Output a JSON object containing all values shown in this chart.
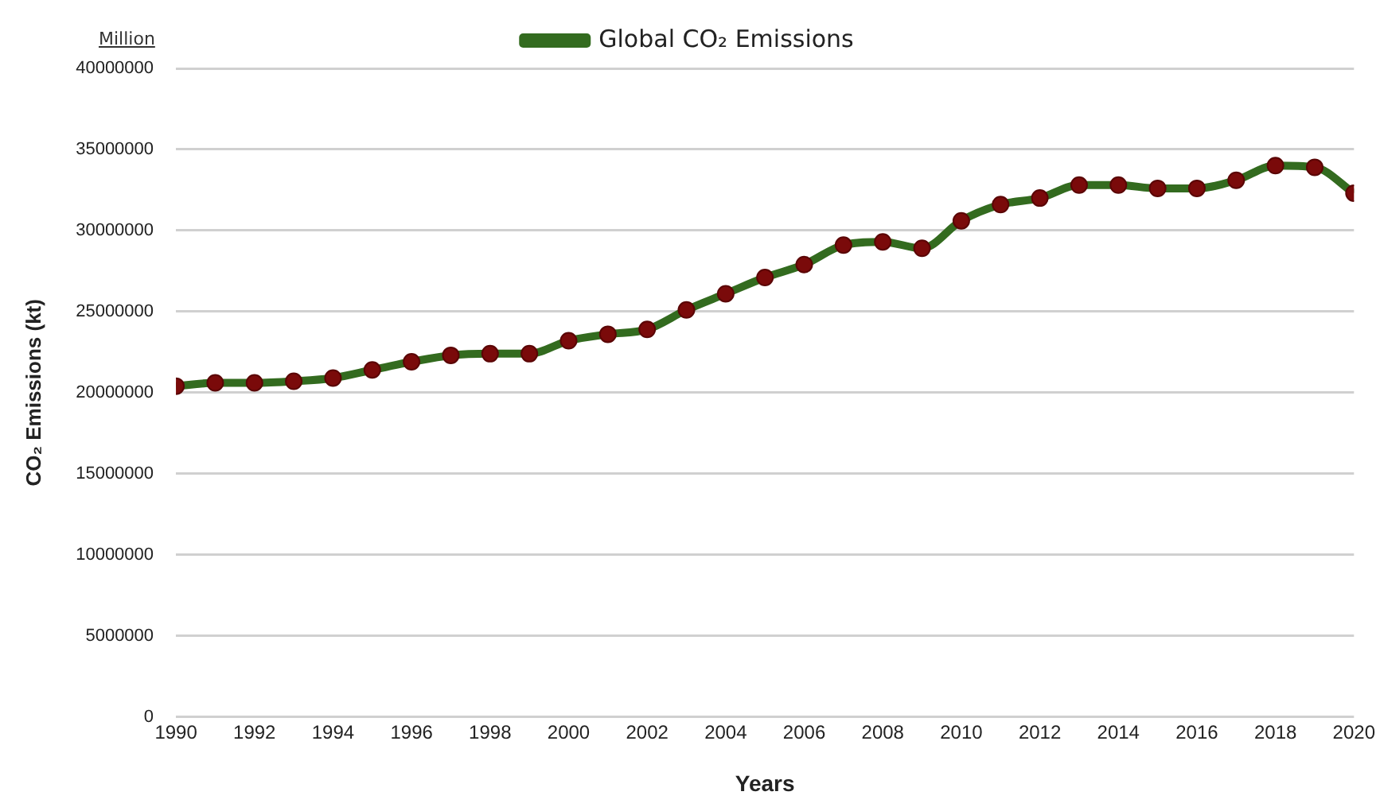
{
  "chart_data": {
    "type": "line",
    "xlabel": "Years",
    "ylabel": "CO₂ Emissions (kt)",
    "annotations": [
      "Million"
    ],
    "x": [
      1990,
      1991,
      1992,
      1993,
      1994,
      1995,
      1996,
      1997,
      1998,
      1999,
      2000,
      2001,
      2002,
      2003,
      2004,
      2005,
      2006,
      2007,
      2008,
      2009,
      2010,
      2011,
      2012,
      2013,
      2014,
      2015,
      2016,
      2017,
      2018,
      2019,
      2020
    ],
    "series": [
      {
        "name": "Global CO₂ Emissions",
        "color": "#336b1f",
        "values": [
          20400000,
          20600000,
          20600000,
          20700000,
          20900000,
          21400000,
          21900000,
          22300000,
          22400000,
          22400000,
          23200000,
          23600000,
          23900000,
          25100000,
          26100000,
          27100000,
          27900000,
          29100000,
          29300000,
          28900000,
          30600000,
          31600000,
          32000000,
          32800000,
          32800000,
          32600000,
          32600000,
          33100000,
          34000000,
          33900000,
          32300000
        ]
      }
    ],
    "xlim": [
      1990,
      2020
    ],
    "xticks": [
      1990,
      1992,
      1994,
      1996,
      1998,
      2000,
      2002,
      2004,
      2006,
      2008,
      2010,
      2012,
      2014,
      2016,
      2018,
      2020
    ],
    "ylim": [
      0,
      40000000
    ],
    "yticks": [
      0,
      5000000,
      10000000,
      15000000,
      20000000,
      25000000,
      30000000,
      35000000,
      40000000
    ],
    "grid": "y",
    "legend": "top",
    "marker": "circle",
    "line_style": "solid"
  }
}
